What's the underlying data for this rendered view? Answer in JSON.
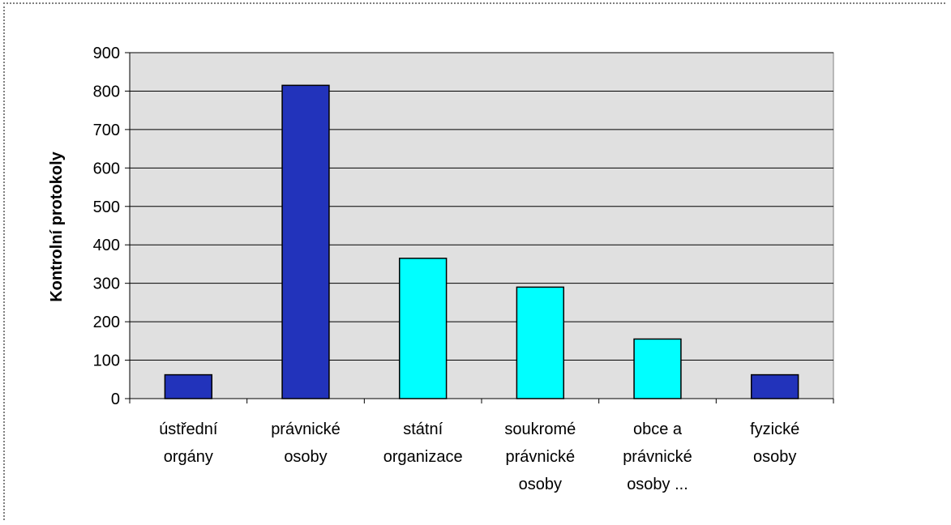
{
  "chart_data": {
    "type": "bar",
    "title": "",
    "xlabel": "",
    "ylabel": "Kontrolní protokoly",
    "ylim": [
      0,
      900
    ],
    "yticks": [
      0,
      100,
      200,
      300,
      400,
      500,
      600,
      700,
      800,
      900
    ],
    "grid": true,
    "categories": [
      [
        "ústřední",
        "orgány"
      ],
      [
        "právnické",
        "osoby"
      ],
      [
        "státní",
        "organizace"
      ],
      [
        "soukromé",
        "právnické",
        "osoby"
      ],
      [
        "obce a",
        "právnické",
        "osoby  ..."
      ],
      [
        "fyzické",
        "osoby"
      ]
    ],
    "values": [
      62,
      815,
      365,
      290,
      155,
      62
    ],
    "colors": [
      "#2233bb",
      "#2233bb",
      "#00ffff",
      "#00ffff",
      "#00ffff",
      "#2233bb"
    ],
    "plot_background": "#e0e0e0"
  }
}
